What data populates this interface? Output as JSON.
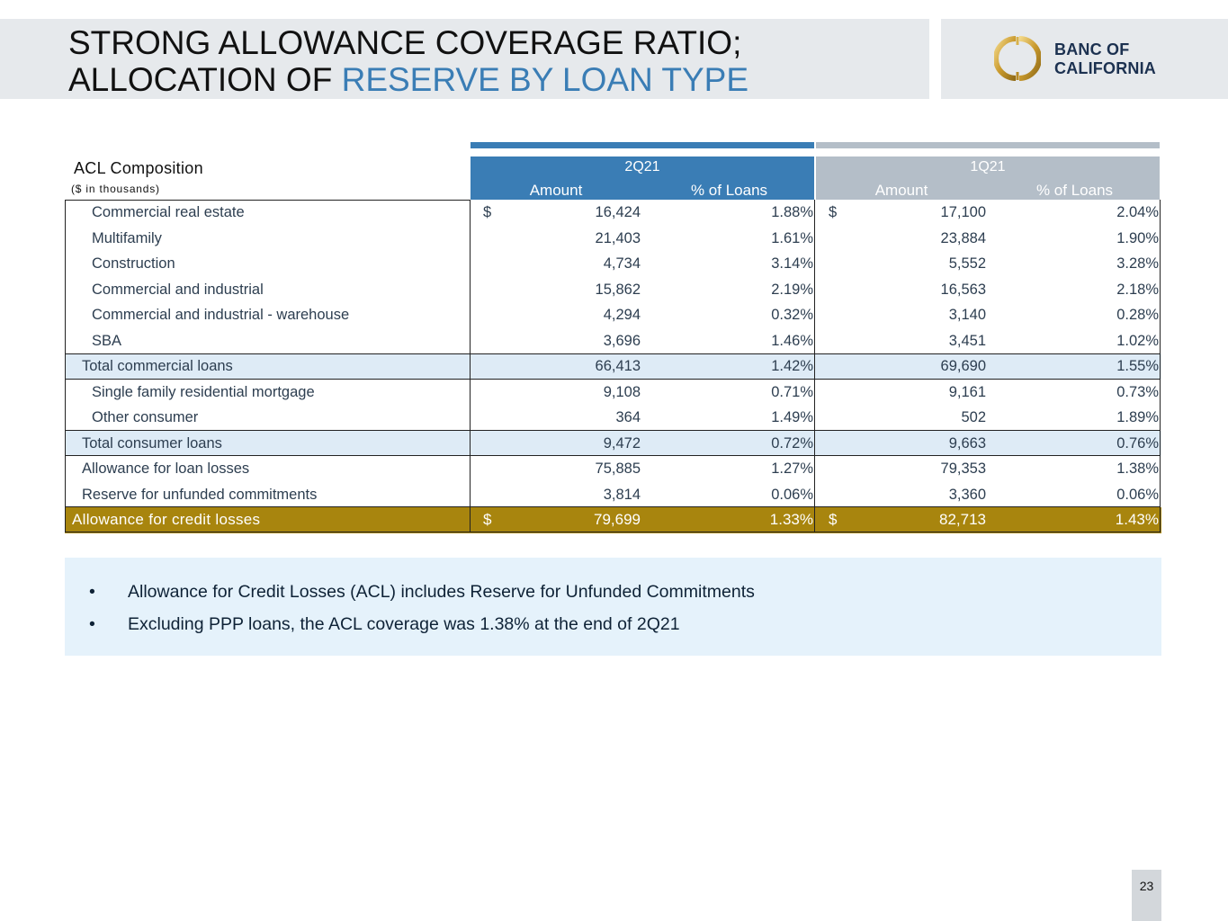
{
  "header": {
    "title_line1": "STRONG ALLOWANCE COVERAGE RATIO;",
    "title_line2_prefix": "ALLOCATION OF ",
    "title_line2_accent": "RESERVE BY LOAN TYPE",
    "accent_color": "#3a7db5"
  },
  "logo": {
    "line1": "BANC OF",
    "line2": "CALIFORNIA",
    "icon": "ring-logo-icon"
  },
  "table": {
    "title": "ACL Composition",
    "subtitle": "($ in thousands)",
    "periods": [
      {
        "label": "2Q21",
        "amount_header": "Amount",
        "pct_header": "% of Loans",
        "color": "#3a7db5"
      },
      {
        "label": "1Q21",
        "amount_header": "Amount",
        "pct_header": "% of Loans",
        "color": "#b4bec8"
      }
    ],
    "rows": [
      {
        "label": "Commercial real estate",
        "d1": "$",
        "a1": "16,424",
        "p1": "1.88%",
        "d2": "$",
        "a2": "17,100",
        "p2": "2.04%"
      },
      {
        "label": "Multifamily",
        "d1": "",
        "a1": "21,403",
        "p1": "1.61%",
        "d2": "",
        "a2": "23,884",
        "p2": "1.90%"
      },
      {
        "label": "Construction",
        "d1": "",
        "a1": "4,734",
        "p1": "3.14%",
        "d2": "",
        "a2": "5,552",
        "p2": "3.28%"
      },
      {
        "label": "Commercial and industrial",
        "d1": "",
        "a1": "15,862",
        "p1": "2.19%",
        "d2": "",
        "a2": "16,563",
        "p2": "2.18%"
      },
      {
        "label": "Commercial and industrial - warehouse",
        "d1": "",
        "a1": "4,294",
        "p1": "0.32%",
        "d2": "",
        "a2": "3,140",
        "p2": "0.28%"
      },
      {
        "label": "SBA",
        "d1": "",
        "a1": "3,696",
        "p1": "1.46%",
        "d2": "",
        "a2": "3,451",
        "p2": "1.02%"
      },
      {
        "label": "Total commercial loans",
        "d1": "",
        "a1": "66,413",
        "p1": "1.42%",
        "d2": "",
        "a2": "69,690",
        "p2": "1.55%"
      },
      {
        "label": "Single family residential mortgage",
        "d1": "",
        "a1": "9,108",
        "p1": "0.71%",
        "d2": "",
        "a2": "9,161",
        "p2": "0.73%"
      },
      {
        "label": "Other consumer",
        "d1": "",
        "a1": "364",
        "p1": "1.49%",
        "d2": "",
        "a2": "502",
        "p2": "1.89%"
      },
      {
        "label": "Total consumer loans",
        "d1": "",
        "a1": "9,472",
        "p1": "0.72%",
        "d2": "",
        "a2": "9,663",
        "p2": "0.76%"
      },
      {
        "label": "Allowance for loan losses",
        "d1": "",
        "a1": "75,885",
        "p1": "1.27%",
        "d2": "",
        "a2": "79,353",
        "p2": "1.38%"
      },
      {
        "label": "Reserve for unfunded commitments",
        "d1": "",
        "a1": "3,814",
        "p1": "0.06%",
        "d2": "",
        "a2": "3,360",
        "p2": "0.06%"
      },
      {
        "label": "Allowance for credit losses",
        "d1": "$",
        "a1": "79,699",
        "p1": "1.33%",
        "d2": "$",
        "a2": "82,713",
        "p2": "1.43%"
      }
    ],
    "total_row_color": "#deebf6",
    "final_row_color": "#a8850e"
  },
  "notes": [
    "Allowance for Credit Losses (ACL) includes Reserve for Unfunded Commitments",
    "Excluding PPP loans, the ACL coverage was 1.38% at the end of 2Q21"
  ],
  "page_number": "23"
}
